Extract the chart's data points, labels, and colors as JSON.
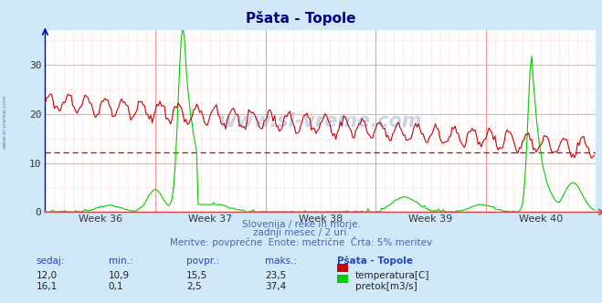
{
  "title": "Pšata - Topole",
  "bg_color": "#d0e8f8",
  "plot_bg_color": "#ffffff",
  "grid_color_h": "#ffcccc",
  "grid_color_v": "#ccccff",
  "xlabel_weeks": [
    "Week 36",
    "Week 37",
    "Week 38",
    "Week 39",
    "Week 40"
  ],
  "ylim": [
    0,
    37
  ],
  "yticks": [
    0,
    10,
    20,
    30
  ],
  "n_points": 360,
  "temp_color": "#cc0000",
  "flow_color": "#00cc00",
  "avg_line_color": "#cc0000",
  "avg_line_y": 12.2,
  "watermark_color": "#1a3a8a",
  "subtitle1": "Slovenija / reke in morje.",
  "subtitle2": "zadnji mesec / 2 uri.",
  "subtitle3": "Meritve: povprečne  Enote: metrične  Črta: 5% meritev",
  "footer_cols": [
    "sedaj:",
    "min.:",
    "povpr.:",
    "maks.:",
    "Pšata - Topole"
  ],
  "temp_stats": [
    "12,0",
    "10,9",
    "15,5",
    "23,5"
  ],
  "flow_stats": [
    "16,1",
    "0,1",
    "2,5",
    "37,4"
  ],
  "temp_label": "temperatura[C]",
  "flow_label": "pretok[m3/s]"
}
